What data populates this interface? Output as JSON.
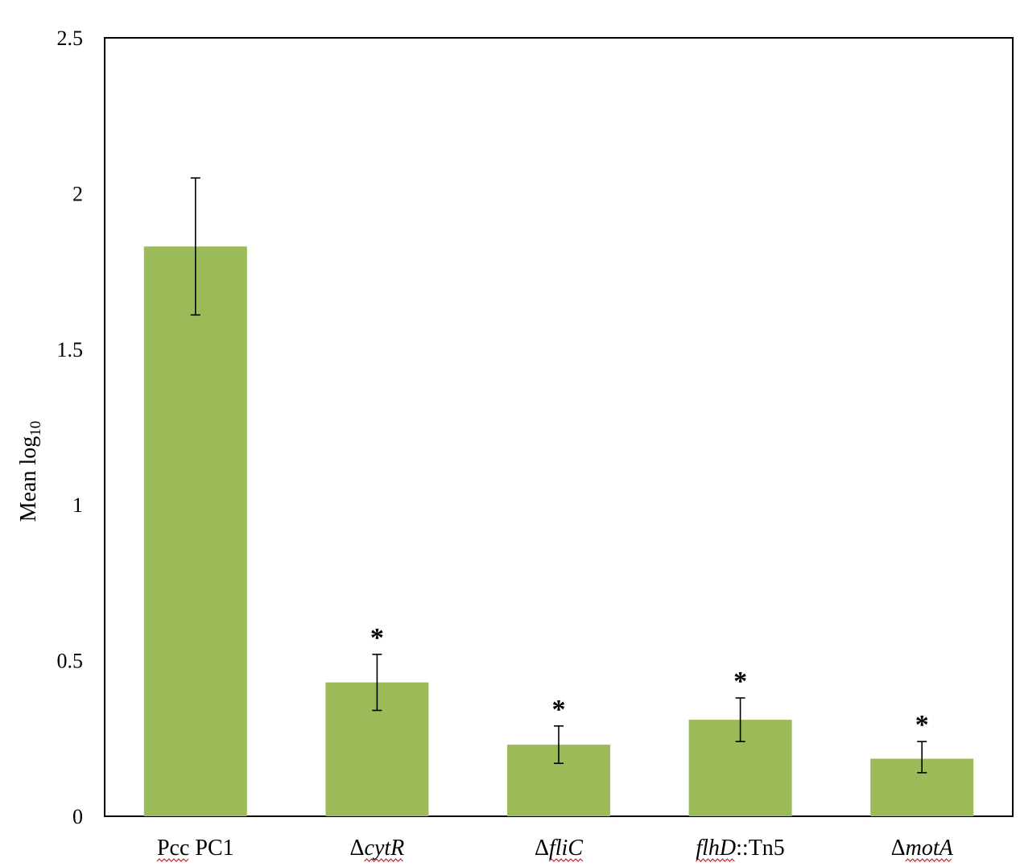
{
  "chart_data": {
    "type": "bar",
    "title": "",
    "xlabel": "",
    "ylabel": "Mean log",
    "ylabel_subscript": "10",
    "ylim": [
      0,
      2.5
    ],
    "yticks": [
      "0",
      "0.5",
      "1",
      "1.5",
      "2",
      "2.5"
    ],
    "grid": false,
    "bar_color": "#9bbb59",
    "categories": [
      {
        "parts": [
          {
            "text": "Pcc",
            "italic": false,
            "underline": true
          },
          {
            "text": " PC1",
            "italic": false,
            "underline": false
          }
        ]
      },
      {
        "parts": [
          {
            "text": "Δ",
            "italic": false,
            "underline": false
          },
          {
            "text": "cytR",
            "italic": true,
            "underline": true
          }
        ]
      },
      {
        "parts": [
          {
            "text": "Δ",
            "italic": false,
            "underline": false
          },
          {
            "text": "fliC",
            "italic": true,
            "underline": true
          }
        ]
      },
      {
        "parts": [
          {
            "text": "flhD",
            "italic": true,
            "underline": true
          },
          {
            "text": "::Tn5",
            "italic": false,
            "underline": false
          }
        ]
      },
      {
        "parts": [
          {
            "text": "Δ",
            "italic": false,
            "underline": false
          },
          {
            "text": "motA",
            "italic": true,
            "underline": true
          }
        ]
      }
    ],
    "values": [
      1.83,
      0.43,
      0.23,
      0.31,
      0.185
    ],
    "error_low": [
      1.61,
      0.34,
      0.17,
      0.24,
      0.14
    ],
    "error_high": [
      2.05,
      0.52,
      0.29,
      0.38,
      0.24
    ],
    "annotations": [
      "",
      "*",
      "*",
      "*",
      "*"
    ]
  }
}
